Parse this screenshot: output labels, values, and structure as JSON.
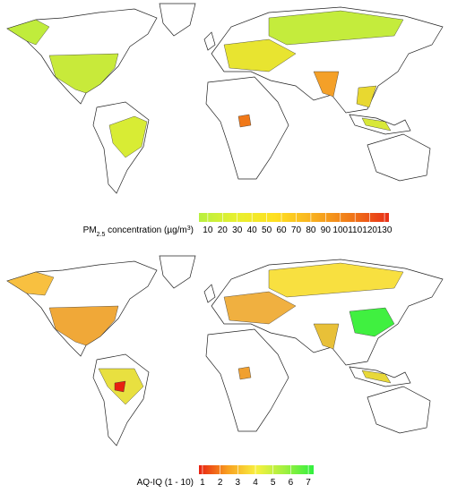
{
  "maps": [
    {
      "legend": {
        "title_parts": [
          "PM",
          "2.5",
          " concentration (µg/m",
          "3",
          ")"
        ],
        "ticks": [
          10,
          20,
          30,
          40,
          50,
          60,
          70,
          80,
          90,
          100,
          110,
          120,
          130
        ],
        "lim": [
          4,
          133
        ],
        "colors": [
          "#b8f040",
          "#e8f030",
          "#ffe020",
          "#f8b020",
          "#f07818",
          "#e83018"
        ]
      }
    },
    {
      "legend": {
        "title_parts": [
          "AQ-IQ (1 - 10)"
        ],
        "ticks": [
          1,
          2,
          3,
          4,
          5,
          6,
          7
        ],
        "lim": [
          0.8,
          7.3
        ],
        "colors": [
          "#e82010",
          "#f8a020",
          "#f8f040",
          "#a0f040",
          "#30f040"
        ]
      }
    }
  ]
}
